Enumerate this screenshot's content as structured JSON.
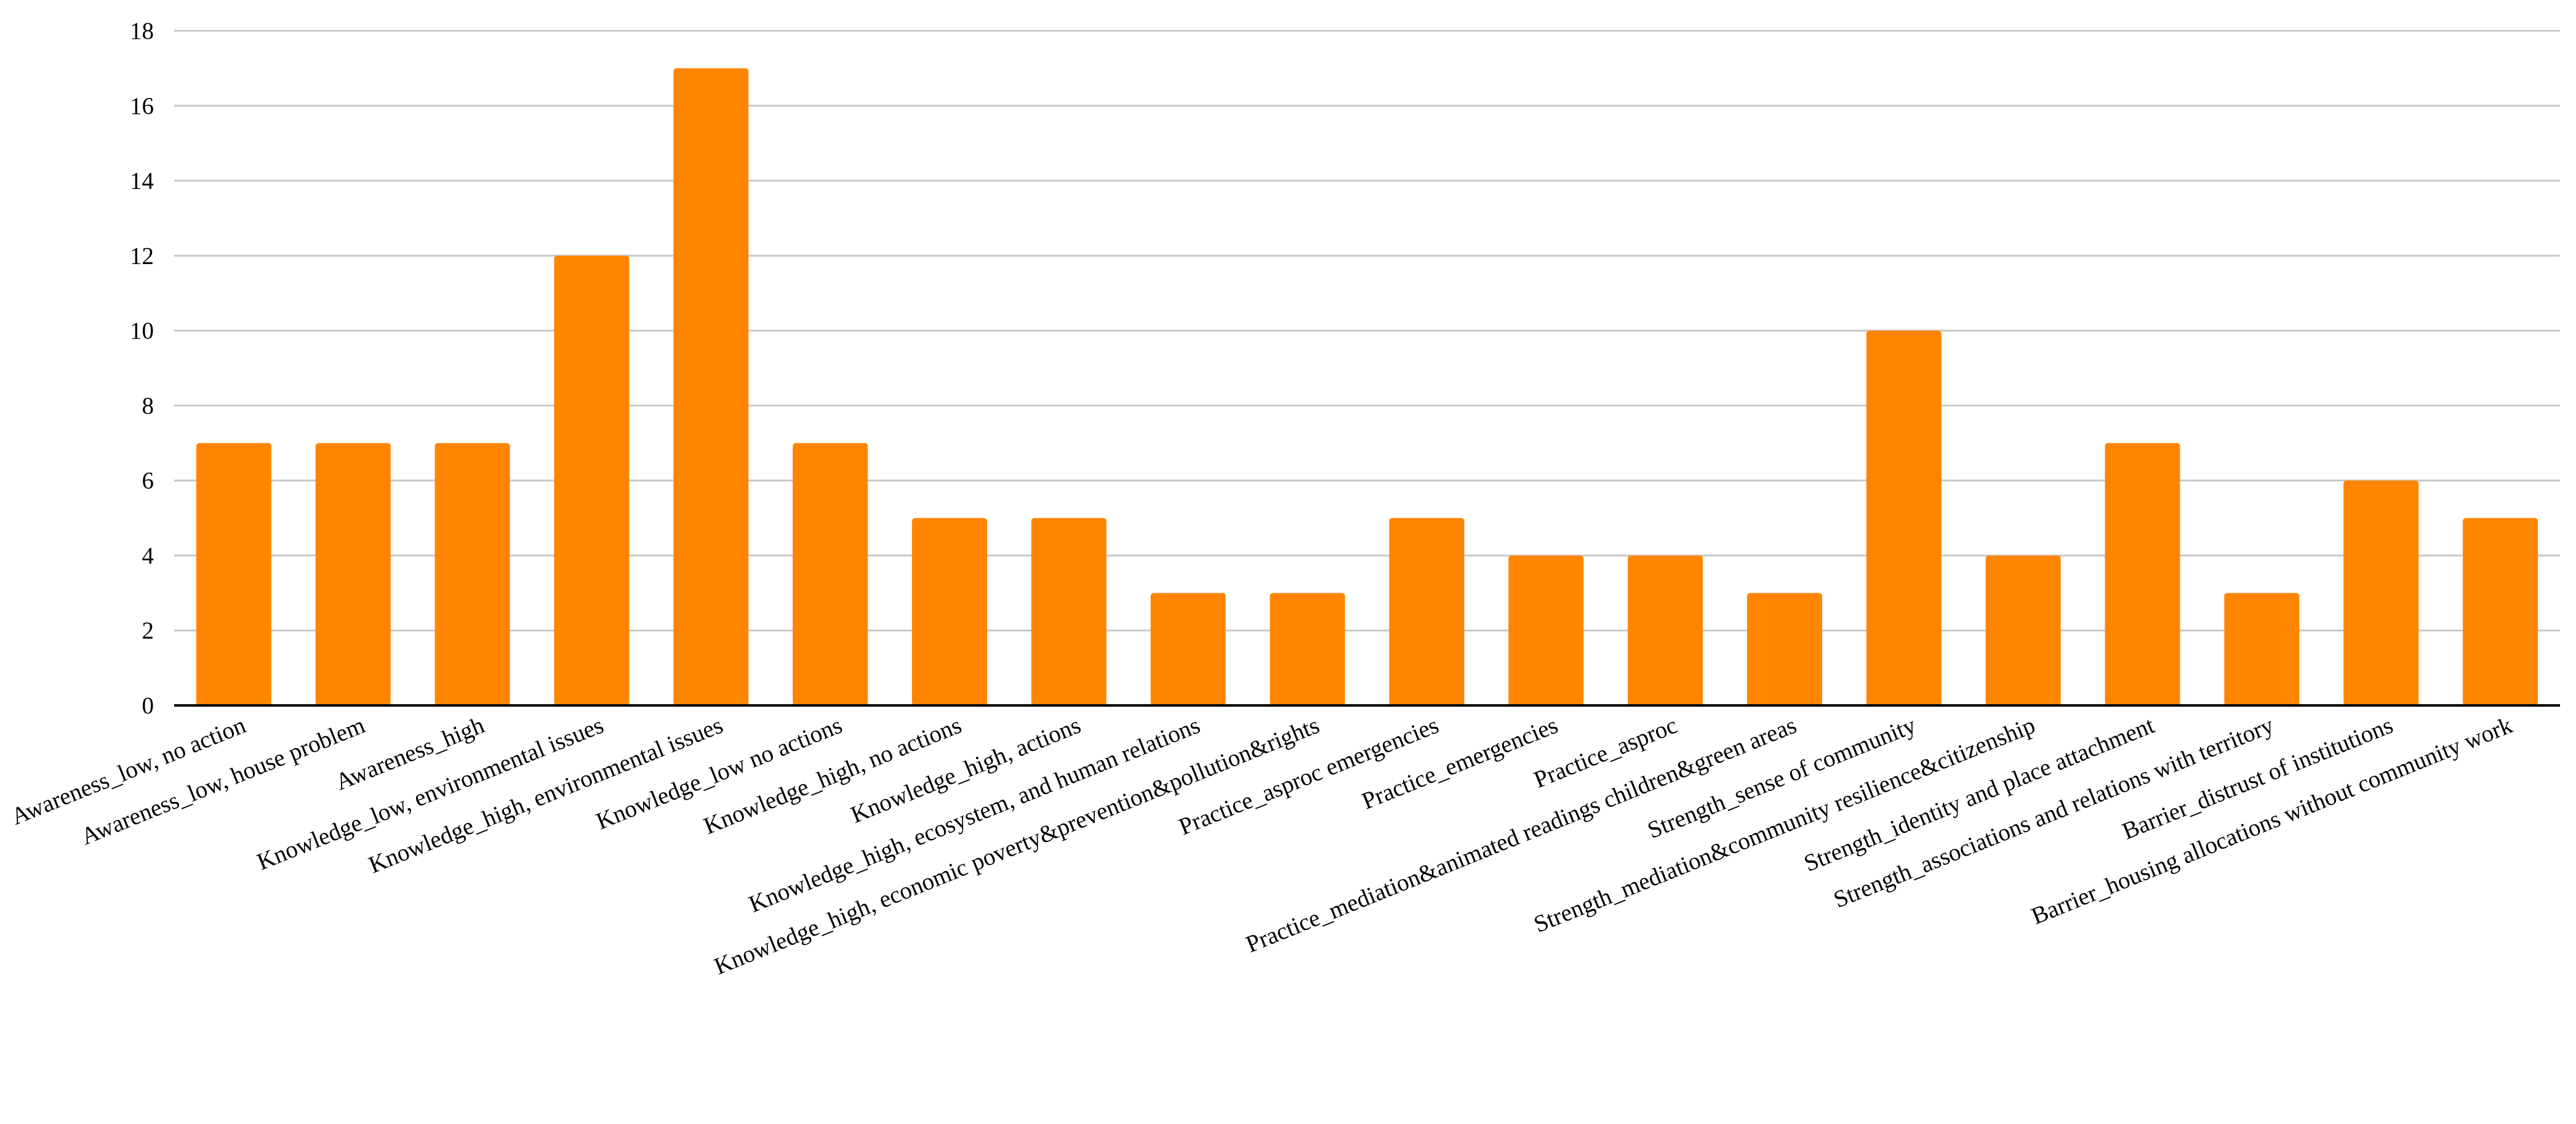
{
  "chart_data": {
    "type": "bar",
    "categories": [
      "Awareness_low, no action",
      "Awareness_low, house problem",
      "Awareness_high",
      "Knowledge_low, environmental issues",
      "Knowledge_high, environmental issues",
      "Knowledge_low no actions",
      "Knowledge_high, no actions",
      "Knowledge_high, actions",
      "Knowledge_high, ecosystem, and human relations",
      "Knowledge_high, economic poverty&prevention&pollution&rights",
      "Practice_asproc emergencies",
      "Practice_emergencies",
      "Practice_asproc",
      "Practice_mediation&animated readings children&green areas",
      "Strength_sense of community",
      "Strength_mediation&community resilience&citizenship",
      "Strength_identity and place attachment",
      "Strength_associations and relations with territory",
      "Barrier_distrust of institutions",
      "Barrier_housing allocations without community work"
    ],
    "values": [
      7,
      7,
      7,
      12,
      17,
      7,
      5,
      5,
      3,
      3,
      5,
      4,
      4,
      3,
      10,
      4,
      7,
      3,
      6,
      5
    ],
    "ylim": [
      0,
      18
    ],
    "yticks": [
      0,
      2,
      4,
      6,
      8,
      10,
      12,
      14,
      16,
      18
    ],
    "title": "",
    "xlabel": "",
    "ylabel": "",
    "grid": true,
    "legend": "none",
    "bar_color": "#FF8500",
    "grid_color": "#C8C8C8",
    "axis_color": "#000000"
  }
}
